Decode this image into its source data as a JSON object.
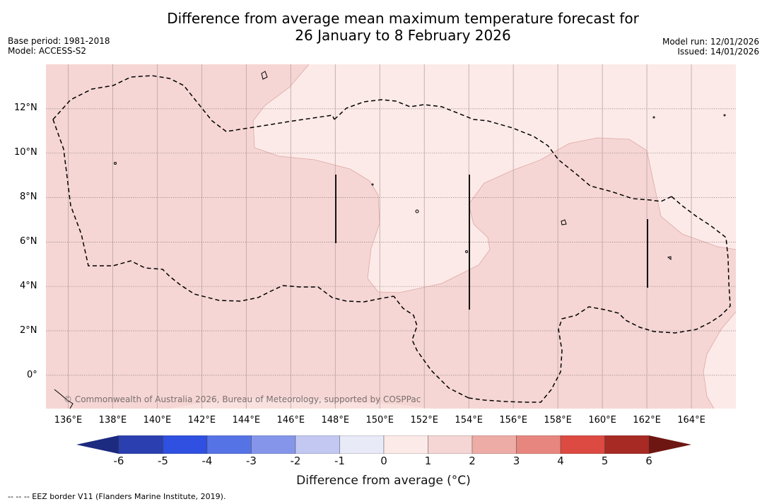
{
  "title": {
    "line1": "Difference from average mean maximum temperature forecast for",
    "line2": "26 January to 8 February 2026"
  },
  "meta_left": {
    "base_period": "Base period: 1981-2018",
    "model": "Model: ACCESS-S2"
  },
  "meta_right": {
    "model_run": "Model run: 12/01/2026",
    "issued": "Issued: 14/01/2026"
  },
  "map": {
    "lon_range": [
      135.0,
      166.0
    ],
    "lat_range": [
      -1.5,
      14.0
    ],
    "lon_labels": [
      "136°E",
      "138°E",
      "140°E",
      "142°E",
      "144°E",
      "146°E",
      "148°E",
      "150°E",
      "152°E",
      "154°E",
      "156°E",
      "158°E",
      "160°E",
      "162°E",
      "164°E"
    ],
    "lon_values": [
      136,
      138,
      140,
      142,
      144,
      146,
      148,
      150,
      152,
      154,
      156,
      158,
      160,
      162,
      164
    ],
    "lat_labels": [
      "12°N",
      "10°N",
      "8°N",
      "6°N",
      "4°N",
      "2°N",
      "0°"
    ],
    "lat_values": [
      12,
      10,
      8,
      6,
      4,
      2,
      0
    ],
    "attribution": "© Commonwealth of Australia 2026, Bureau of Meteorology, supported by COSPPac",
    "category_colors": {
      "c0_1": "#fceae8",
      "c1_2": "#f5d6d4"
    }
  },
  "colorbar": {
    "ticks": [
      "-6",
      "-5",
      "-4",
      "-3",
      "-2",
      "-1",
      "0",
      "1",
      "2",
      "3",
      "4",
      "5",
      "6"
    ],
    "colors": [
      "#1c2a80",
      "#2b3fb0",
      "#2f50e0",
      "#5673e6",
      "#8596ea",
      "#c2c8f2",
      "#e8eaf8",
      "#fceae8",
      "#f5d6d4",
      "#eeaca6",
      "#e7867f",
      "#dc4a41",
      "#a82a24",
      "#6e1712"
    ],
    "label": "Difference from average (°C)"
  },
  "footnote": "--  --  -- EEZ border V11 (Flanders Marine Institute, 2019)."
}
